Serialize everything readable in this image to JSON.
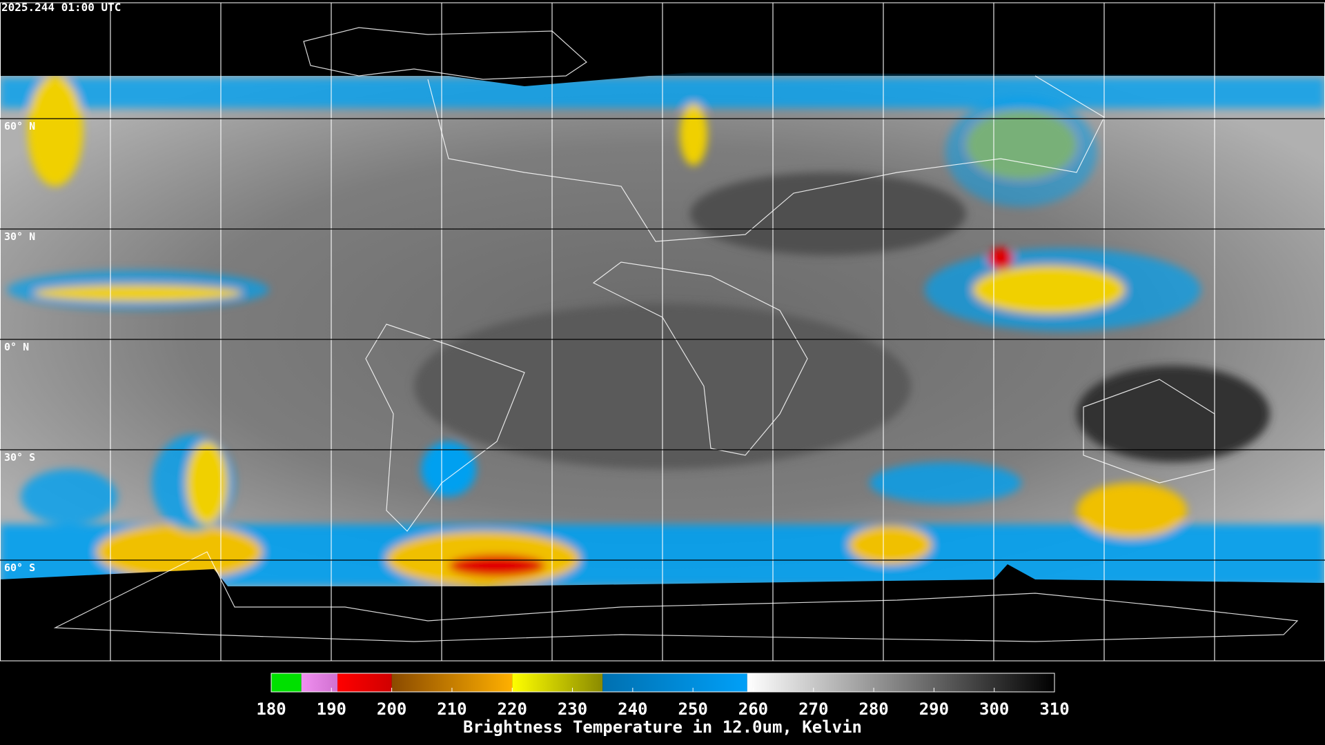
{
  "header": {
    "timestamp": "2025.244 01:00 UTC"
  },
  "map": {
    "lat_ticks": [
      {
        "value": 60,
        "label": "60° N"
      },
      {
        "value": 30,
        "label": "30° N"
      },
      {
        "value": 0,
        "label": "0° N"
      },
      {
        "value": -30,
        "label": "30° S"
      },
      {
        "value": -60,
        "label": "60° S"
      }
    ],
    "grid_color": "#ffffff"
  },
  "colorbar": {
    "label": "Brightness Temperature in 12.0um, Kelvin",
    "range": [
      180,
      310
    ],
    "ticks": [
      180,
      190,
      200,
      210,
      220,
      230,
      240,
      250,
      260,
      270,
      280,
      290,
      300,
      310
    ],
    "segments": [
      {
        "from": 180,
        "to": 185,
        "colors": [
          "#00e000",
          "#00e000"
        ]
      },
      {
        "from": 185,
        "to": 191,
        "colors": [
          "#f090f0",
          "#d070d0"
        ]
      },
      {
        "from": 191,
        "to": 200,
        "colors": [
          "#ff0000",
          "#d00000"
        ]
      },
      {
        "from": 200,
        "to": 220,
        "colors": [
          "#8a4a00",
          "#ffb000"
        ]
      },
      {
        "from": 220,
        "to": 235,
        "colors": [
          "#ffff00",
          "#8a8a00"
        ]
      },
      {
        "from": 235,
        "to": 259,
        "colors": [
          "#0070b0",
          "#00a0f8"
        ]
      },
      {
        "from": 259,
        "to": 310,
        "colors": [
          "#ffffff",
          "#000000"
        ]
      }
    ]
  }
}
